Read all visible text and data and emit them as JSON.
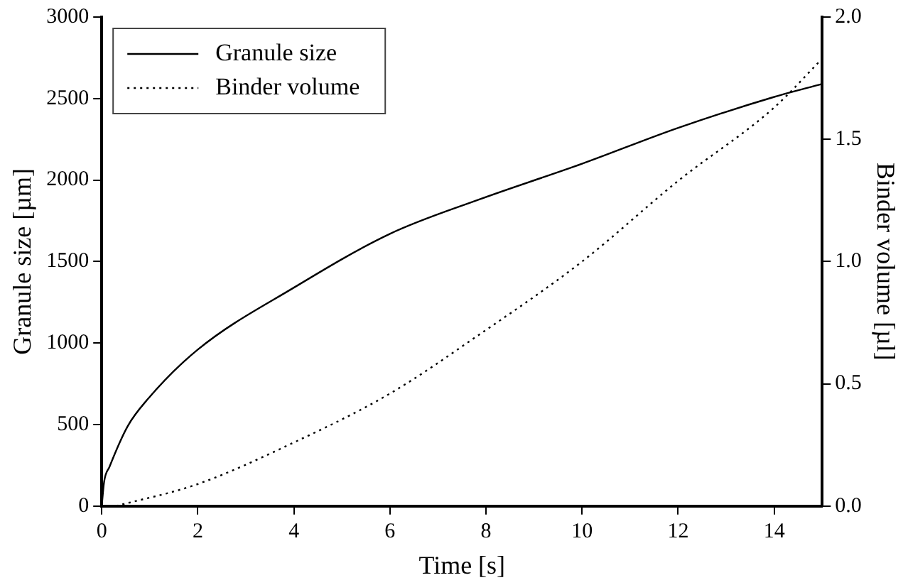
{
  "chart_data": {
    "type": "line",
    "xlabel": "Time [s]",
    "ylabel": "Granule size [µm]",
    "y2label": "Binder volume [µl]",
    "xlim": [
      0,
      15
    ],
    "xticks": [
      0,
      2,
      4,
      6,
      8,
      10,
      12,
      14
    ],
    "ylim": [
      0,
      3000
    ],
    "yticks": [
      0,
      500,
      1000,
      1500,
      2000,
      2500,
      3000
    ],
    "y2lim": [
      0,
      2.0
    ],
    "y2ticks": [
      {
        "value": 0,
        "label": "0.0"
      },
      {
        "value": 0.5,
        "label": "0.5"
      },
      {
        "value": 1,
        "label": "1.0"
      },
      {
        "value": 1.5,
        "label": "1.5"
      },
      {
        "value": 2,
        "label": "2.0"
      }
    ],
    "legend": "top left",
    "grid": false,
    "marker": "none",
    "series": [
      {
        "name": "Granule size",
        "color": "#000000",
        "line_style": "solid",
        "x": [
          0,
          0.05,
          0.16,
          0.54,
          0.97,
          2,
          4,
          6,
          7.85,
          10,
          12,
          14,
          15
        ],
        "values": [
          0,
          150,
          240,
          490,
          660,
          960,
          1340,
          1670,
          1880,
          2100,
          2320,
          2510,
          2590
        ]
      },
      {
        "name": "Binder volume",
        "color": "#000000",
        "line_style": "dotted",
        "axis": "y2",
        "x": [
          0.3,
          2,
          4,
          6,
          7.85,
          10,
          12,
          14,
          15
        ],
        "values": [
          0,
          0.09,
          0.26,
          0.46,
          0.7,
          1.0,
          1.33,
          1.63,
          1.83
        ]
      }
    ]
  }
}
